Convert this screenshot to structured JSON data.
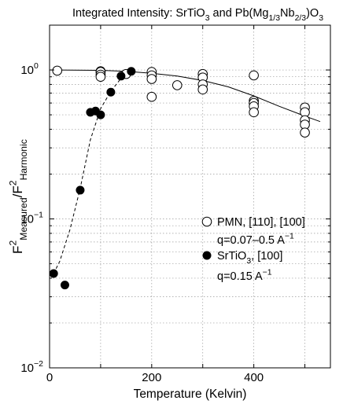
{
  "chart_data": {
    "type": "scatter",
    "title": {
      "parts": [
        {
          "text": "Integrated Intensity: SrTiO",
          "sub": false
        },
        {
          "text": "3",
          "sub": true
        },
        {
          "text": " and Pb(Mg",
          "sub": false
        },
        {
          "text": "1/3",
          "sub": true
        },
        {
          "text": "Nb",
          "sub": false
        },
        {
          "text": "2/3",
          "sub": true
        },
        {
          "text": ")O",
          "sub": false
        },
        {
          "text": "3",
          "sub": true
        }
      ]
    },
    "xlabel": "Temperature (Kelvin)",
    "ylabel": {
      "parts": [
        {
          "text": "F",
          "sub": false,
          "sup": false
        },
        {
          "text": "2",
          "sup": true
        },
        {
          "text": "Measured",
          "sub": true
        },
        {
          "text": "/F",
          "sub": false,
          "sup": false
        },
        {
          "text": "2",
          "sup": true
        },
        {
          "text": "Harmonic",
          "sub": true
        }
      ]
    },
    "xlim": [
      0,
      550
    ],
    "ylim": [
      0.01,
      2
    ],
    "yscale": "log",
    "grid": true,
    "xticks": [
      0,
      200,
      400
    ],
    "yticks": [
      {
        "value": 0.01,
        "base": "10",
        "exp": "−2"
      },
      {
        "value": 0.1,
        "base": "10",
        "exp": "−1"
      },
      {
        "value": 1,
        "base": "10",
        "exp": "0"
      }
    ],
    "legend_position": "right-middle",
    "series": [
      {
        "name_parts": [
          {
            "text": "PMN, [110], [100]",
            "sub": false
          }
        ],
        "detail_parts": [
          {
            "text": "q=0.07–0.5 A",
            "sup": false
          },
          {
            "text": "−1",
            "sup": true
          }
        ],
        "marker": "open-circle",
        "color": "#000000",
        "x": [
          15,
          100,
          100,
          100,
          100,
          150,
          200,
          200,
          200,
          200,
          250,
          300,
          300,
          300,
          300,
          400,
          400,
          400,
          400,
          400,
          500,
          500,
          500,
          500,
          500
        ],
        "y": [
          0.99,
          0.98,
          0.97,
          0.93,
          0.9,
          0.94,
          0.97,
          0.92,
          0.87,
          0.66,
          0.79,
          0.94,
          0.89,
          0.8,
          0.74,
          0.92,
          0.62,
          0.6,
          0.57,
          0.52,
          0.56,
          0.52,
          0.46,
          0.43,
          0.38
        ]
      },
      {
        "name_parts": [
          {
            "text": "SrTiO",
            "sub": false
          },
          {
            "text": "3",
            "sub": true
          },
          {
            "text": ", [100]",
            "sub": false
          }
        ],
        "detail_parts": [
          {
            "text": "q=0.15 A",
            "sup": false
          },
          {
            "text": "−1",
            "sup": true
          }
        ],
        "marker": "filled-circle",
        "color": "#000000",
        "x": [
          8,
          30,
          60,
          80,
          90,
          100,
          120,
          140,
          160
        ],
        "y": [
          0.043,
          0.036,
          0.156,
          0.52,
          0.53,
          0.5,
          0.71,
          0.91,
          0.98
        ]
      }
    ],
    "fit_lines": [
      {
        "style": "solid",
        "x": [
          0,
          100,
          150,
          200,
          250,
          300,
          350,
          400,
          450,
          500,
          530
        ],
        "y": [
          1.0,
          0.995,
          0.98,
          0.95,
          0.91,
          0.85,
          0.77,
          0.67,
          0.57,
          0.49,
          0.45
        ]
      },
      {
        "style": "dashed",
        "x": [
          8,
          20,
          40,
          60,
          80,
          100,
          120,
          140,
          160
        ],
        "y": [
          0.043,
          0.052,
          0.085,
          0.16,
          0.34,
          0.55,
          0.72,
          0.88,
          0.98
        ]
      }
    ]
  }
}
